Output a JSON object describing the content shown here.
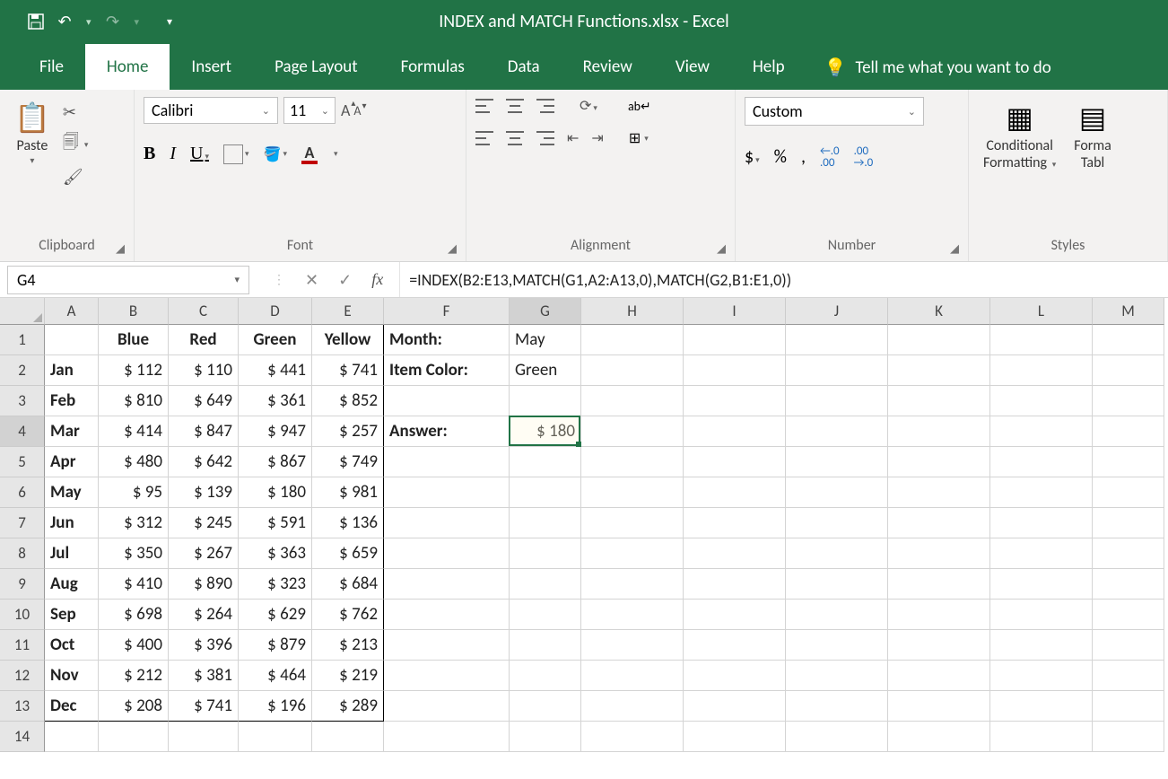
{
  "app": {
    "title": "INDEX and MATCH Functions.xlsx  -  Excel",
    "header_bg": "#217346"
  },
  "ribbon": {
    "tabs": [
      "File",
      "Home",
      "Insert",
      "Page Layout",
      "Formulas",
      "Data",
      "Review",
      "View",
      "Help"
    ],
    "active_tab": "Home",
    "tell_me": "Tell me what you want to do",
    "groups": {
      "clipboard": {
        "label": "Clipboard",
        "paste": "Paste"
      },
      "font": {
        "label": "Font",
        "name": "Calibri",
        "size": "11"
      },
      "alignment": {
        "label": "Alignment"
      },
      "number": {
        "label": "Number",
        "format": "Custom"
      },
      "styles": {
        "label": "Styles",
        "conditional": "Conditional Formatting",
        "format_table": "Forma Tabl"
      }
    }
  },
  "formula_bar": {
    "name_box": "G4",
    "formula": "=INDEX(B2:E13,MATCH(G1,A2:A13,0),MATCH(G2,B1:E1,0))"
  },
  "grid": {
    "columns": [
      {
        "id": "A",
        "w": 60
      },
      {
        "id": "B",
        "w": 78
      },
      {
        "id": "C",
        "w": 78
      },
      {
        "id": "D",
        "w": 82
      },
      {
        "id": "E",
        "w": 80
      },
      {
        "id": "F",
        "w": 140
      },
      {
        "id": "G",
        "w": 80
      },
      {
        "id": "H",
        "w": 114
      },
      {
        "id": "I",
        "w": 114
      },
      {
        "id": "J",
        "w": 114
      },
      {
        "id": "K",
        "w": 114
      },
      {
        "id": "L",
        "w": 114
      },
      {
        "id": "M",
        "w": 80
      }
    ],
    "row_count": 14,
    "headers_row1": [
      "",
      "Blue",
      "Red",
      "Green",
      "Yellow"
    ],
    "months": [
      "Jan",
      "Feb",
      "Mar",
      "Apr",
      "May",
      "Jun",
      "Jul",
      "Aug",
      "Sep",
      "Oct",
      "Nov",
      "Dec"
    ],
    "values": [
      [
        112,
        110,
        441,
        741
      ],
      [
        810,
        649,
        361,
        852
      ],
      [
        414,
        847,
        947,
        257
      ],
      [
        480,
        642,
        867,
        749
      ],
      [
        95,
        139,
        180,
        981
      ],
      [
        312,
        245,
        591,
        136
      ],
      [
        350,
        267,
        363,
        659
      ],
      [
        410,
        890,
        323,
        684
      ],
      [
        698,
        264,
        629,
        762
      ],
      [
        400,
        396,
        879,
        213
      ],
      [
        212,
        381,
        464,
        219
      ],
      [
        208,
        741,
        196,
        289
      ]
    ],
    "labels": {
      "month": "Month:",
      "item_color": "Item Color:",
      "answer": "Answer:"
    },
    "inputs": {
      "month_val": "May",
      "color_val": "Green",
      "answer_val": "$ 180"
    },
    "selected": {
      "col": "G",
      "row": 4
    }
  }
}
